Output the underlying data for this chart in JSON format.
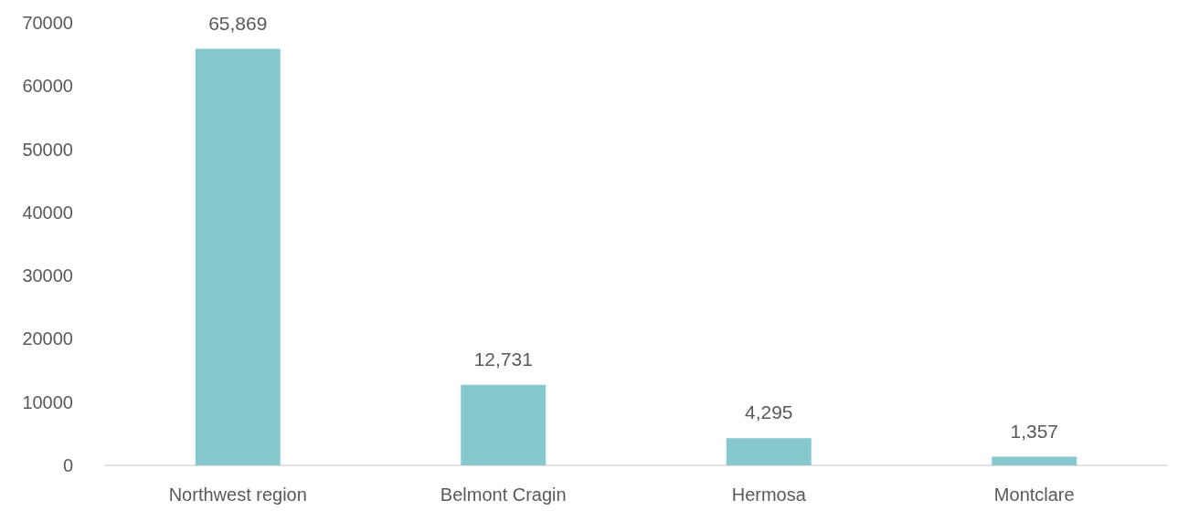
{
  "chart_data": {
    "type": "bar",
    "categories": [
      "Northwest region",
      "Belmont Cragin",
      "Hermosa",
      "Montclare"
    ],
    "values": [
      65869,
      12731,
      4295,
      1357
    ],
    "color": "#86c8ce",
    "value_labels": [
      "65,869",
      "12,731",
      "4,295",
      "1,357"
    ],
    "ylim": [
      0,
      70000
    ],
    "yticks": [
      0,
      10000,
      20000,
      30000,
      40000,
      50000,
      60000,
      70000
    ],
    "grid": false
  }
}
